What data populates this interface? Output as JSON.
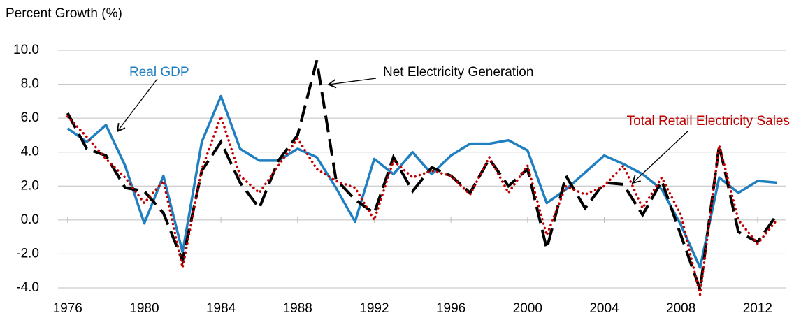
{
  "chart_data": {
    "type": "line",
    "y_label": "Percent Growth (%)",
    "annotations": [
      "Real GDP",
      "Net Electricity Generation",
      "Total Retail Electricity Sales"
    ],
    "x": [
      1976,
      1977,
      1978,
      1979,
      1980,
      1981,
      1982,
      1983,
      1984,
      1985,
      1986,
      1987,
      1988,
      1989,
      1990,
      1991,
      1992,
      1993,
      1994,
      1995,
      1996,
      1997,
      1998,
      1999,
      2000,
      2001,
      2002,
      2003,
      2004,
      2005,
      2006,
      2007,
      2008,
      2009,
      2010,
      2011,
      2012,
      2013
    ],
    "xlim": [
      1975.5,
      2013.5
    ],
    "xticks": [
      1976,
      1980,
      1984,
      1988,
      1992,
      1996,
      2000,
      2004,
      2008,
      2012
    ],
    "ylim": [
      -4,
      10
    ],
    "yticks": [
      {
        "value": -4,
        "label": "-4.0"
      },
      {
        "value": -2,
        "label": "-2.0"
      },
      {
        "value": 0,
        "label": "0.0"
      },
      {
        "value": 2,
        "label": "2.0"
      },
      {
        "value": 4,
        "label": "4.0"
      },
      {
        "value": 6,
        "label": "6.0"
      },
      {
        "value": 8,
        "label": "8.0"
      },
      {
        "value": 10,
        "label": "10.0"
      }
    ],
    "grid": true,
    "series": [
      {
        "name": "Real GDP",
        "color": "#1f7fc1",
        "style": "solid",
        "values": [
          5.4,
          4.6,
          5.6,
          3.2,
          -0.2,
          2.6,
          -1.9,
          4.6,
          7.3,
          4.2,
          3.5,
          3.5,
          4.2,
          3.7,
          1.9,
          -0.1,
          3.6,
          2.7,
          4.0,
          2.7,
          3.8,
          4.5,
          4.5,
          4.7,
          4.1,
          1.0,
          1.8,
          2.8,
          3.8,
          3.3,
          2.7,
          1.8,
          -0.3,
          -2.8,
          2.5,
          1.6,
          2.3,
          2.2
        ]
      },
      {
        "name": "Net Electricity Generation",
        "color": "#000000",
        "style": "dashed",
        "values": [
          6.3,
          4.2,
          3.8,
          1.9,
          1.7,
          0.4,
          -2.4,
          2.9,
          4.6,
          2.2,
          0.7,
          3.5,
          5.0,
          9.4,
          2.4,
          1.2,
          0.4,
          3.7,
          1.7,
          3.1,
          2.6,
          1.6,
          3.6,
          2.0,
          3.0,
          -1.7,
          2.6,
          0.7,
          2.2,
          2.1,
          0.3,
          2.3,
          -0.9,
          -4.1,
          4.4,
          -0.7,
          -1.3,
          0.3
        ]
      },
      {
        "name": "Total Retail Electricity Sales",
        "color": "#c00000",
        "style": "dotted",
        "values": [
          6.1,
          4.9,
          3.6,
          2.5,
          1.0,
          2.3,
          -2.8,
          3.0,
          6.1,
          2.6,
          1.6,
          3.2,
          4.8,
          3.0,
          2.3,
          1.9,
          0.0,
          3.5,
          2.5,
          2.9,
          2.6,
          1.5,
          3.7,
          1.6,
          3.2,
          -0.9,
          2.0,
          1.5,
          2.0,
          3.2,
          0.7,
          2.5,
          0.3,
          -4.4,
          4.4,
          0.0,
          -1.4,
          0.0
        ]
      }
    ]
  }
}
